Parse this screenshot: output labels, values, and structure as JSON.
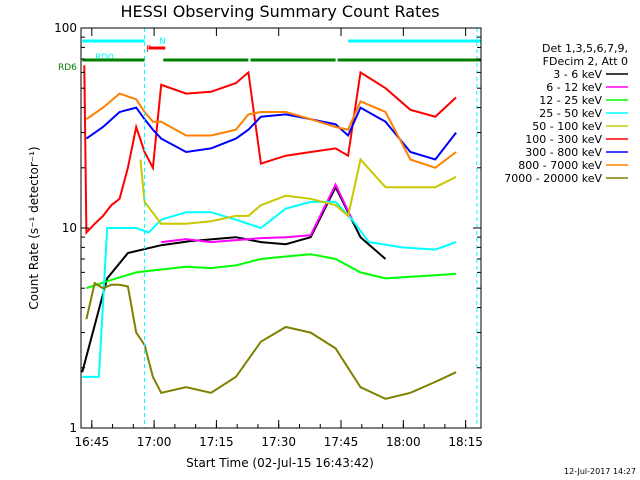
{
  "chart_data": {
    "type": "line",
    "title": "HESSI Observing Summary Count Rates",
    "xlabel": "Start Time (02-Jul-15 16:43:42)",
    "ylabel": "Count Rate (s⁻¹ detector⁻¹)",
    "yscale": "log",
    "ylim": [
      1,
      100
    ],
    "xlim_minutes": [
      -1.3,
      95
    ],
    "x_ticks": [
      "16:45",
      "17:00",
      "17:15",
      "17:30",
      "17:45",
      "18:00",
      "18:15"
    ],
    "y_ticks": [
      "1",
      "10",
      "100"
    ],
    "legend": {
      "header": [
        "Det 1,3,5,6,7,9,",
        "FDecim 2, Att 0"
      ],
      "placement": "right"
    },
    "series": [
      {
        "name": "3 - 6 keV",
        "color": "#000000",
        "x": [
          -1,
          5,
          10,
          18,
          25,
          36,
          42,
          48,
          54,
          60,
          66,
          72
        ],
        "y": [
          1.9,
          5.6,
          7.5,
          8.2,
          8.6,
          9.0,
          8.5,
          8.3,
          9.0,
          16.0,
          9.0,
          7.0
        ]
      },
      {
        "name": "6 - 12 keV",
        "color": "#ff00ff",
        "x": [
          18,
          24,
          30,
          36,
          42,
          48,
          54,
          60,
          64
        ],
        "y": [
          8.5,
          8.8,
          8.5,
          8.7,
          8.9,
          9.0,
          9.2,
          16.5,
          11.0
        ]
      },
      {
        "name": "12 - 25 keV",
        "color": "#00ff00",
        "x": [
          0,
          6,
          12,
          18,
          24,
          30,
          36,
          42,
          48,
          54,
          60,
          66,
          72,
          78,
          84,
          89
        ],
        "y": [
          5.0,
          5.5,
          6.0,
          6.2,
          6.4,
          6.3,
          6.5,
          7.0,
          7.2,
          7.4,
          7.0,
          6.0,
          5.6,
          5.7,
          5.8,
          5.9
        ]
      },
      {
        "name": "25 - 50 keV",
        "color": "#00ffff",
        "x": [
          -1,
          3,
          5,
          12,
          15,
          18,
          24,
          30,
          36,
          42,
          48,
          54,
          60,
          64,
          68,
          76,
          84,
          89
        ],
        "y": [
          1.8,
          1.8,
          10.0,
          10.0,
          9.5,
          11.0,
          12.0,
          12.0,
          11.0,
          10.0,
          12.5,
          13.5,
          13.5,
          11.0,
          8.5,
          8.0,
          7.8,
          8.5
        ]
      },
      {
        "name": "50 - 100 keV",
        "color": "#c8c800",
        "x": [
          13,
          14,
          18,
          24,
          30,
          36,
          39,
          42,
          48,
          54,
          60,
          63,
          66,
          72,
          78,
          84,
          89
        ],
        "y": [
          22,
          13.5,
          10.5,
          10.5,
          10.8,
          11.5,
          11.5,
          13.0,
          14.5,
          14.0,
          13.0,
          11.5,
          22,
          16,
          16,
          16,
          18
        ]
      },
      {
        "name": "100 - 300 keV",
        "color": "#ff0000",
        "x": [
          -0.5,
          0,
          2,
          4,
          6,
          8,
          10,
          12,
          14,
          16,
          18,
          24,
          30,
          36,
          39,
          42,
          48,
          54,
          60,
          63,
          66,
          72,
          78,
          84,
          89
        ],
        "y": [
          65,
          9.5,
          10.5,
          11.5,
          13,
          14,
          20,
          32,
          24,
          20,
          52,
          47,
          48,
          53,
          60,
          21,
          23,
          24,
          25,
          23,
          60,
          50,
          39,
          36,
          45
        ]
      },
      {
        "name": "300 - 800 keV",
        "color": "#0000ff",
        "x": [
          0,
          4,
          8,
          12,
          14,
          16,
          18,
          24,
          30,
          36,
          39,
          42,
          48,
          54,
          60,
          63,
          66,
          72,
          78,
          84,
          89
        ],
        "y": [
          28,
          32,
          38,
          40,
          35,
          31,
          28,
          24,
          25,
          28,
          31,
          36,
          37,
          35,
          33,
          29,
          40,
          34,
          24,
          22,
          30
        ]
      },
      {
        "name": "800 - 7000 keV",
        "color": "#ff8000",
        "x": [
          0,
          4,
          8,
          12,
          14,
          16,
          18,
          24,
          30,
          36,
          39,
          42,
          48,
          54,
          60,
          63,
          66,
          72,
          78,
          84,
          89
        ],
        "y": [
          35,
          40,
          47,
          44,
          38,
          34,
          34,
          29,
          29,
          31,
          37,
          38,
          38,
          35,
          32,
          31,
          43,
          38,
          22,
          20,
          24
        ]
      },
      {
        "name": "7000 - 20000 keV",
        "color": "#808000",
        "x": [
          0,
          2,
          4,
          6,
          8,
          10,
          12,
          14,
          16,
          18,
          24,
          30,
          36,
          42,
          48,
          54,
          60,
          66,
          72,
          78,
          84,
          89
        ],
        "y": [
          3.5,
          5.3,
          5.0,
          5.2,
          5.2,
          5.1,
          3.0,
          2.6,
          1.8,
          1.5,
          1.6,
          1.5,
          1.8,
          2.7,
          3.2,
          3.0,
          2.5,
          1.6,
          1.4,
          1.5,
          1.7,
          1.9
        ]
      }
    ],
    "flags": [
      {
        "label": "RD0",
        "color": "#00ffff",
        "segments": [
          [
            -1,
            14
          ],
          [
            63,
            95
          ]
        ]
      },
      {
        "label": "N",
        "color": "#00ffff",
        "segments": []
      },
      {
        "label": "F",
        "color": "#ff0000",
        "segments": [
          [
            15,
            19
          ]
        ]
      },
      {
        "label": "RD6",
        "color": "#008000",
        "segments": [
          [
            -1,
            14
          ],
          [
            18.5,
            39
          ],
          [
            39.5,
            60
          ],
          [
            60.5,
            95
          ]
        ]
      }
    ],
    "vertical_markers": [
      {
        "color": "#00ffff",
        "x": [
          14,
          94
        ]
      }
    ]
  },
  "footer": {
    "date": "12-Jul-2017 14:27"
  }
}
